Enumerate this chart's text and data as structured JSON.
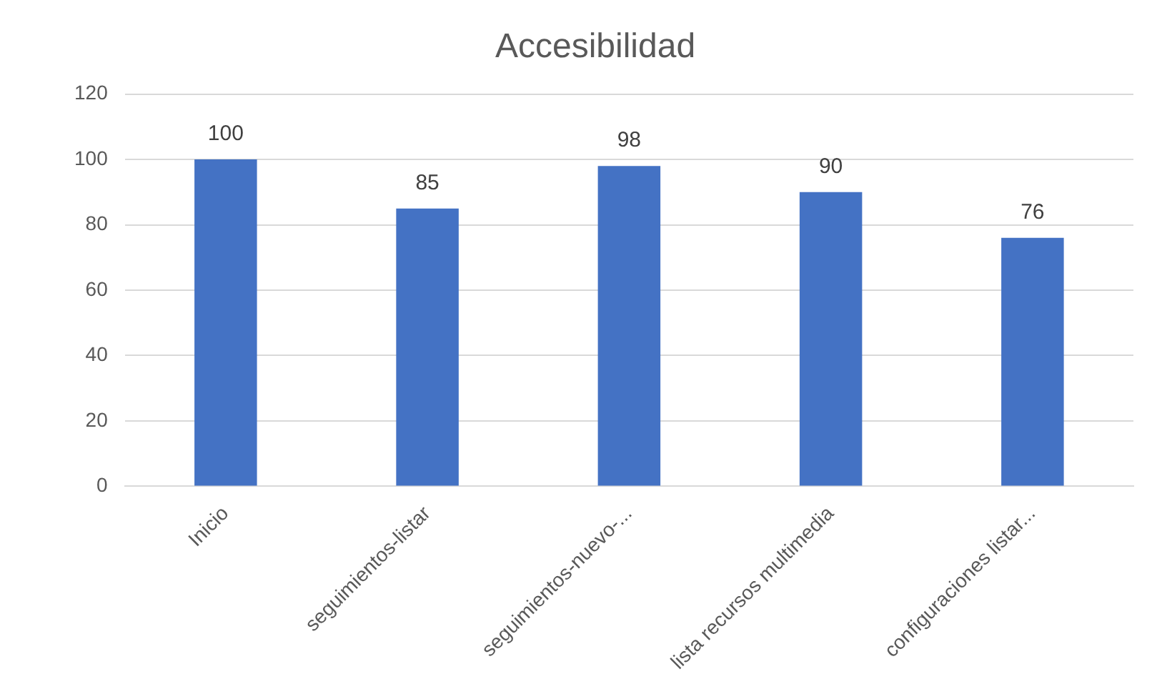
{
  "chart_data": {
    "type": "bar",
    "title": "Accesibilidad",
    "categories": [
      "Inicio",
      "seguimientos-listar",
      "seguimientos-nuevo-...",
      "lista recursos multimedia",
      "configuraciones listar..."
    ],
    "values": [
      100,
      85,
      98,
      90,
      76
    ],
    "color": "#4472c4",
    "ylim": [
      0,
      120
    ],
    "yticks": [
      0,
      20,
      40,
      60,
      80,
      100,
      120
    ],
    "grid": "y",
    "data_labels": true,
    "legend": false
  }
}
